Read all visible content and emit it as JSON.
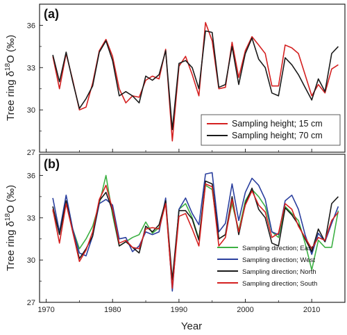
{
  "ylabel_parts": {
    "pre": "Tree ring δ",
    "sup": "18",
    "post": "O  (‰)"
  },
  "chart_data": [
    {
      "panel": "(a)",
      "type": "line",
      "xlim": [
        1969,
        2015
      ],
      "ylim": [
        27,
        37.5
      ],
      "yticks": [
        27,
        30,
        33,
        36
      ],
      "xticks": [],
      "xlabel": "",
      "grid": false,
      "legend_position": "bottom-right",
      "series": [
        {
          "name": "Sampling height; 15 cm",
          "color": "#d42020",
          "x": [
            1971,
            1972,
            1973,
            1974,
            1975,
            1976,
            1977,
            1978,
            1979,
            1980,
            1981,
            1982,
            1983,
            1984,
            1985,
            1986,
            1987,
            1988,
            1989,
            1990,
            1991,
            1992,
            1993,
            1994,
            1995,
            1996,
            1997,
            1998,
            1999,
            2000,
            2001,
            2002,
            2003,
            2004,
            2005,
            2006,
            2007,
            2008,
            2009,
            2010,
            2011,
            2012,
            2013,
            2014
          ],
          "values": [
            33.8,
            31.5,
            34.0,
            32.1,
            30.0,
            30.2,
            31.9,
            34.2,
            35.0,
            33.8,
            31.5,
            30.5,
            31.0,
            30.9,
            32.1,
            32.4,
            32.2,
            34.3,
            27.8,
            33.1,
            33.8,
            32.5,
            31.0,
            36.2,
            34.9,
            31.5,
            31.6,
            34.8,
            32.3,
            34.2,
            35.2,
            34.6,
            34.0,
            31.7,
            31.7,
            34.6,
            34.4,
            34.0,
            32.5,
            31.0,
            31.8,
            31.2,
            32.9,
            33.2
          ]
        },
        {
          "name": "Sampling height; 70 cm",
          "color": "#1a1a1a",
          "x": [
            1971,
            1972,
            1973,
            1974,
            1975,
            1976,
            1977,
            1978,
            1979,
            1980,
            1981,
            1982,
            1983,
            1984,
            1985,
            1986,
            1987,
            1988,
            1989,
            1990,
            1991,
            1992,
            1993,
            1994,
            1995,
            1996,
            1997,
            1998,
            1999,
            2000,
            2001,
            2002,
            2003,
            2004,
            2005,
            2006,
            2007,
            2008,
            2009,
            2010,
            2011,
            2012,
            2013,
            2014
          ],
          "values": [
            33.9,
            32.0,
            34.1,
            32.0,
            30.1,
            30.8,
            31.7,
            34.1,
            34.9,
            33.5,
            31.0,
            31.3,
            31.0,
            30.5,
            32.4,
            32.1,
            32.5,
            34.2,
            28.6,
            33.3,
            33.5,
            33.0,
            31.5,
            35.6,
            35.5,
            31.6,
            31.8,
            34.5,
            31.8,
            34.0,
            35.1,
            33.6,
            33.0,
            31.2,
            31.0,
            33.7,
            33.2,
            32.5,
            31.6,
            30.7,
            32.2,
            31.3,
            34.0,
            34.5
          ]
        }
      ]
    },
    {
      "panel": "(b)",
      "type": "line",
      "xlim": [
        1969,
        2015
      ],
      "ylim": [
        27,
        37.5
      ],
      "yticks": [
        27,
        30,
        33,
        36
      ],
      "xticks": [
        1970,
        1980,
        1990,
        2000,
        2010
      ],
      "xlabel": "Year",
      "grid": false,
      "legend_position": "bottom-right",
      "series": [
        {
          "name": "Sampling direction; East",
          "color": "#3cb043",
          "x": [
            1971,
            1972,
            1973,
            1974,
            1975,
            1976,
            1977,
            1978,
            1979,
            1980,
            1981,
            1982,
            1983,
            1984,
            1985,
            1986,
            1987,
            1988,
            1989,
            1990,
            1991,
            1992,
            1993,
            1994,
            1995,
            1996,
            1997,
            1998,
            1999,
            2000,
            2001,
            2002,
            2003,
            2004,
            2005,
            2006,
            2007,
            2008,
            2009,
            2010,
            2011,
            2012,
            2013,
            2014
          ],
          "values": [
            33.5,
            31.9,
            34.0,
            32.2,
            30.8,
            31.5,
            32.4,
            34.0,
            36.0,
            33.2,
            31.0,
            31.3,
            31.6,
            31.8,
            32.7,
            31.9,
            32.3,
            34.1,
            28.0,
            33.6,
            34.0,
            33.0,
            31.5,
            35.3,
            35.0,
            31.5,
            31.8,
            34.0,
            32.1,
            34.2,
            35.0,
            34.5,
            33.8,
            32.0,
            31.6,
            33.8,
            33.3,
            32.8,
            31.2,
            29.3,
            31.4,
            30.9,
            30.9,
            33.5
          ]
        },
        {
          "name": "Sampling direction; West",
          "color": "#2a3f9e",
          "x": [
            1971,
            1972,
            1973,
            1974,
            1975,
            1976,
            1977,
            1978,
            1979,
            1980,
            1981,
            1982,
            1983,
            1984,
            1985,
            1986,
            1987,
            1988,
            1989,
            1990,
            1991,
            1992,
            1993,
            1994,
            1995,
            1996,
            1997,
            1998,
            1999,
            2000,
            2001,
            2002,
            2003,
            2004,
            2005,
            2006,
            2007,
            2008,
            2009,
            2010,
            2011,
            2012,
            2013,
            2014
          ],
          "values": [
            34.4,
            32.0,
            34.6,
            32.2,
            30.5,
            30.3,
            31.7,
            34.0,
            34.3,
            33.9,
            31.5,
            31.6,
            30.6,
            31.0,
            32.0,
            31.8,
            32.0,
            34.4,
            27.8,
            33.6,
            34.4,
            33.3,
            32.5,
            36.1,
            36.2,
            32.0,
            32.6,
            35.4,
            32.8,
            34.8,
            35.8,
            35.3,
            34.3,
            32.0,
            31.8,
            34.2,
            34.6,
            33.6,
            31.8,
            30.4,
            31.9,
            31.3,
            32.6,
            33.8
          ]
        },
        {
          "name": "Sampling direction; North",
          "color": "#1a1a1a",
          "x": [
            1971,
            1972,
            1973,
            1974,
            1975,
            1976,
            1977,
            1978,
            1979,
            1980,
            1981,
            1982,
            1983,
            1984,
            1985,
            1986,
            1987,
            1988,
            1989,
            1990,
            1991,
            1992,
            1993,
            1994,
            1995,
            1996,
            1997,
            1998,
            1999,
            2000,
            2001,
            2002,
            2003,
            2004,
            2005,
            2006,
            2007,
            2008,
            2009,
            2010,
            2011,
            2012,
            2013,
            2014
          ],
          "values": [
            33.8,
            31.8,
            34.2,
            32.0,
            30.1,
            30.8,
            31.7,
            34.2,
            34.8,
            33.5,
            31.0,
            31.3,
            30.9,
            30.5,
            32.4,
            32.0,
            32.5,
            34.2,
            28.6,
            33.5,
            33.5,
            32.9,
            31.4,
            35.6,
            35.4,
            31.5,
            31.8,
            34.5,
            31.8,
            34.0,
            35.1,
            33.6,
            33.0,
            31.2,
            31.0,
            33.7,
            33.2,
            32.5,
            31.5,
            30.6,
            32.2,
            31.3,
            34.0,
            34.5
          ]
        },
        {
          "name": "Sampling direction; South",
          "color": "#d42020",
          "x": [
            1971,
            1972,
            1973,
            1974,
            1975,
            1976,
            1977,
            1978,
            1979,
            1980,
            1981,
            1982,
            1983,
            1984,
            1985,
            1986,
            1987,
            1988,
            1989,
            1990,
            1991,
            1992,
            1993,
            1994,
            1995,
            1996,
            1997,
            1998,
            1999,
            2000,
            2001,
            2002,
            2003,
            2004,
            2005,
            2006,
            2007,
            2008,
            2009,
            2010,
            2011,
            2012,
            2013,
            2014
          ],
          "values": [
            33.6,
            31.2,
            34.0,
            32.0,
            29.9,
            30.7,
            32.0,
            34.3,
            35.3,
            33.6,
            31.2,
            31.4,
            30.9,
            30.8,
            32.2,
            32.3,
            32.2,
            34.0,
            28.0,
            33.1,
            33.3,
            32.2,
            31.0,
            35.4,
            35.2,
            31.0,
            31.6,
            34.3,
            32.0,
            33.9,
            34.9,
            33.9,
            33.4,
            31.6,
            31.9,
            34.0,
            33.6,
            32.4,
            31.6,
            30.8,
            31.6,
            31.4,
            32.8,
            33.4
          ]
        }
      ]
    }
  ]
}
